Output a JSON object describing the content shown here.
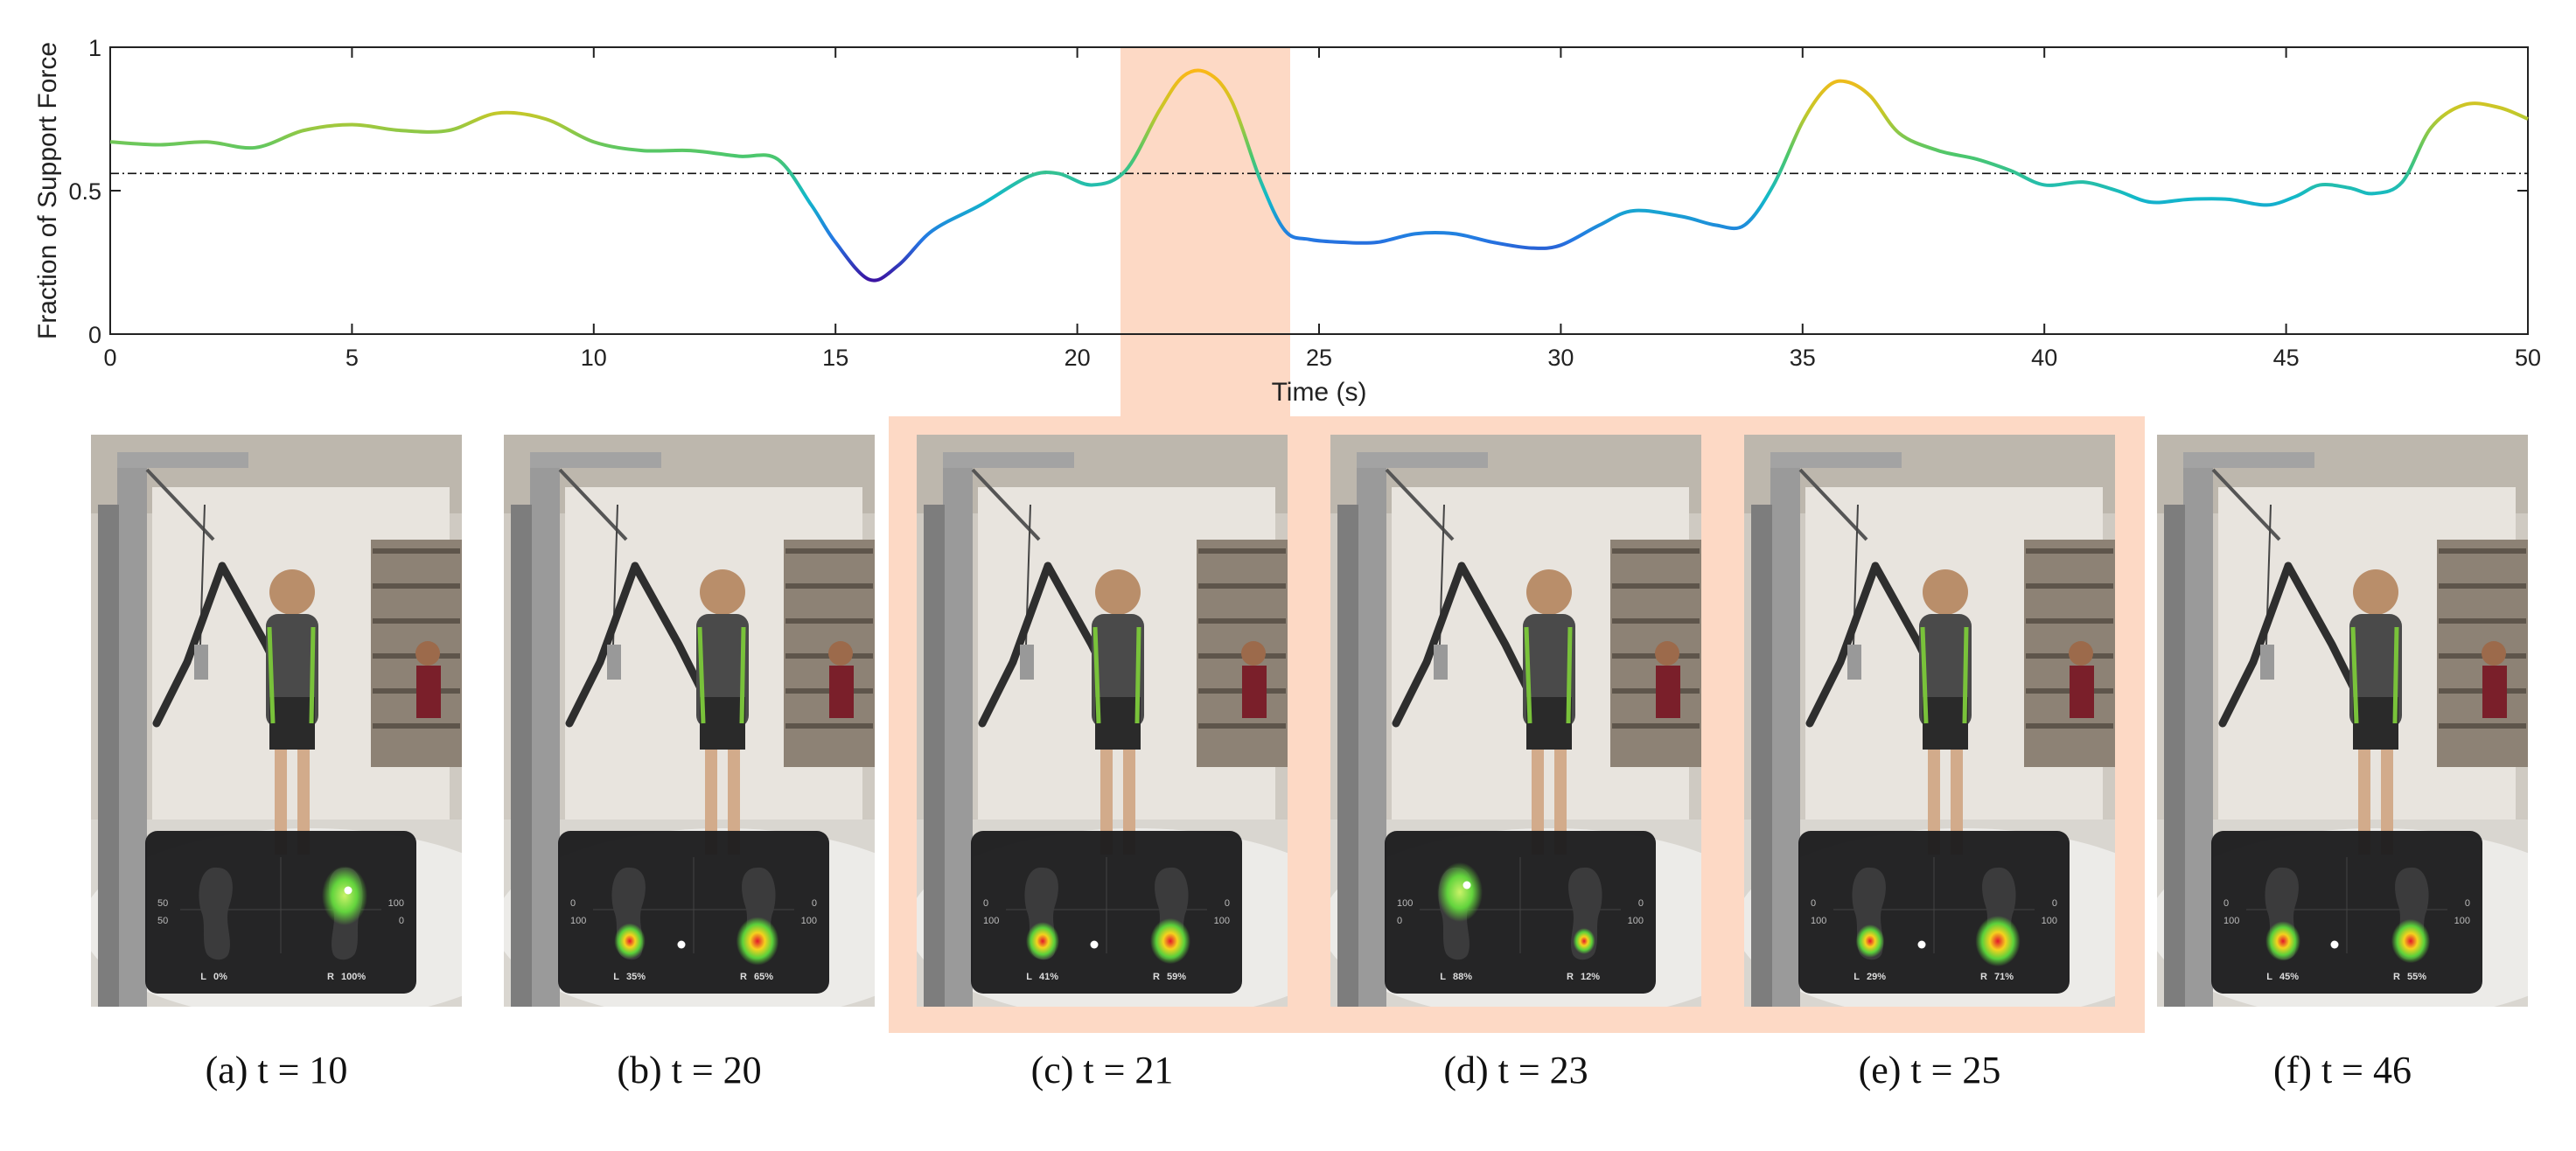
{
  "chart_data": {
    "type": "line",
    "title": "",
    "xlabel": "Time (s)",
    "ylabel": "Fraction of Support Force",
    "xlim": [
      0,
      50
    ],
    "ylim": [
      0,
      1
    ],
    "xticks": [
      0,
      5,
      10,
      15,
      20,
      25,
      30,
      35,
      40,
      45,
      50
    ],
    "yticks": [
      0,
      0.5,
      1
    ],
    "reference_line": 0.56,
    "highlight_range": [
      20.9,
      24.4
    ],
    "colormap": [
      "#3b0f9f",
      "#2477e3",
      "#12b9c9",
      "#4cc76c",
      "#c4c829",
      "#fbb717"
    ],
    "series": [
      {
        "x": [
          0,
          1,
          2,
          3,
          4,
          5,
          6,
          7,
          8,
          9,
          10,
          11,
          12,
          13,
          13.8,
          14.5,
          15,
          15.7,
          16.3,
          17,
          18,
          19,
          19.6,
          20.3,
          21,
          21.7,
          22.2,
          22.7,
          23.2,
          23.8,
          24.3,
          24.8,
          25.5,
          26.2,
          27,
          27.8,
          28.6,
          29.4,
          30,
          30.8,
          31.5,
          32.5,
          33.2,
          33.8,
          34.4,
          35,
          35.5,
          35.9,
          36.4,
          37,
          37.8,
          38.6,
          39.3,
          40,
          40.8,
          41.5,
          42.2,
          43,
          43.8,
          44.6,
          45.2,
          45.7,
          46.3,
          46.8,
          47.4,
          48,
          48.7,
          49.4,
          50
        ],
        "y": [
          0.67,
          0.66,
          0.67,
          0.65,
          0.71,
          0.73,
          0.71,
          0.71,
          0.77,
          0.75,
          0.67,
          0.64,
          0.64,
          0.62,
          0.61,
          0.45,
          0.32,
          0.19,
          0.24,
          0.36,
          0.45,
          0.55,
          0.56,
          0.52,
          0.57,
          0.78,
          0.9,
          0.91,
          0.81,
          0.53,
          0.36,
          0.33,
          0.32,
          0.32,
          0.35,
          0.35,
          0.32,
          0.3,
          0.31,
          0.38,
          0.43,
          0.41,
          0.38,
          0.38,
          0.52,
          0.74,
          0.86,
          0.88,
          0.83,
          0.7,
          0.64,
          0.61,
          0.57,
          0.52,
          0.53,
          0.5,
          0.46,
          0.47,
          0.47,
          0.45,
          0.48,
          0.52,
          0.51,
          0.49,
          0.53,
          0.72,
          0.8,
          0.79,
          0.75
        ]
      }
    ]
  },
  "panels": [
    {
      "caption": "(a) t = 10",
      "left_label": "L",
      "left_pct": "0%",
      "right_label": "R",
      "right_pct": "100%",
      "scale_top": "50",
      "scale_bottom": "50",
      "scale_right_top": "100",
      "scale_right_bottom": "0",
      "left_weight": 0.0,
      "right_weight": 1.0
    },
    {
      "caption": "(b) t = 20",
      "left_label": "L",
      "left_pct": "35%",
      "right_label": "R",
      "right_pct": "65%",
      "scale_top": "0",
      "scale_bottom": "100",
      "scale_right_top": "0",
      "scale_right_bottom": "100",
      "left_weight": 0.35,
      "right_weight": 0.65
    },
    {
      "caption": "(c) t = 21",
      "left_label": "L",
      "left_pct": "41%",
      "right_label": "R",
      "right_pct": "59%",
      "scale_top": "0",
      "scale_bottom": "100",
      "scale_right_top": "0",
      "scale_right_bottom": "100",
      "left_weight": 0.41,
      "right_weight": 0.59
    },
    {
      "caption": "(d) t = 23",
      "left_label": "L",
      "left_pct": "88%",
      "right_label": "R",
      "right_pct": "12%",
      "scale_top": "100",
      "scale_bottom": "0",
      "scale_right_top": "0",
      "scale_right_bottom": "100",
      "left_weight": 0.88,
      "right_weight": 0.12
    },
    {
      "caption": "(e) t = 25",
      "left_label": "L",
      "left_pct": "29%",
      "right_label": "R",
      "right_pct": "71%",
      "scale_top": "0",
      "scale_bottom": "100",
      "scale_right_top": "0",
      "scale_right_bottom": "100",
      "left_weight": 0.29,
      "right_weight": 0.71
    },
    {
      "caption": "(f) t = 46",
      "left_label": "L",
      "left_pct": "45%",
      "right_label": "R",
      "right_pct": "55%",
      "scale_top": "0",
      "scale_bottom": "100",
      "scale_right_top": "0",
      "scale_right_bottom": "100",
      "left_weight": 0.45,
      "right_weight": 0.55
    }
  ],
  "colors": {
    "highlight": "#fdd9c5",
    "axis": "#222222",
    "wall": "#e8e4de",
    "floor": "#d9d6d0",
    "frame": "#9a9a9a",
    "overlay": "#1c1c1e"
  }
}
